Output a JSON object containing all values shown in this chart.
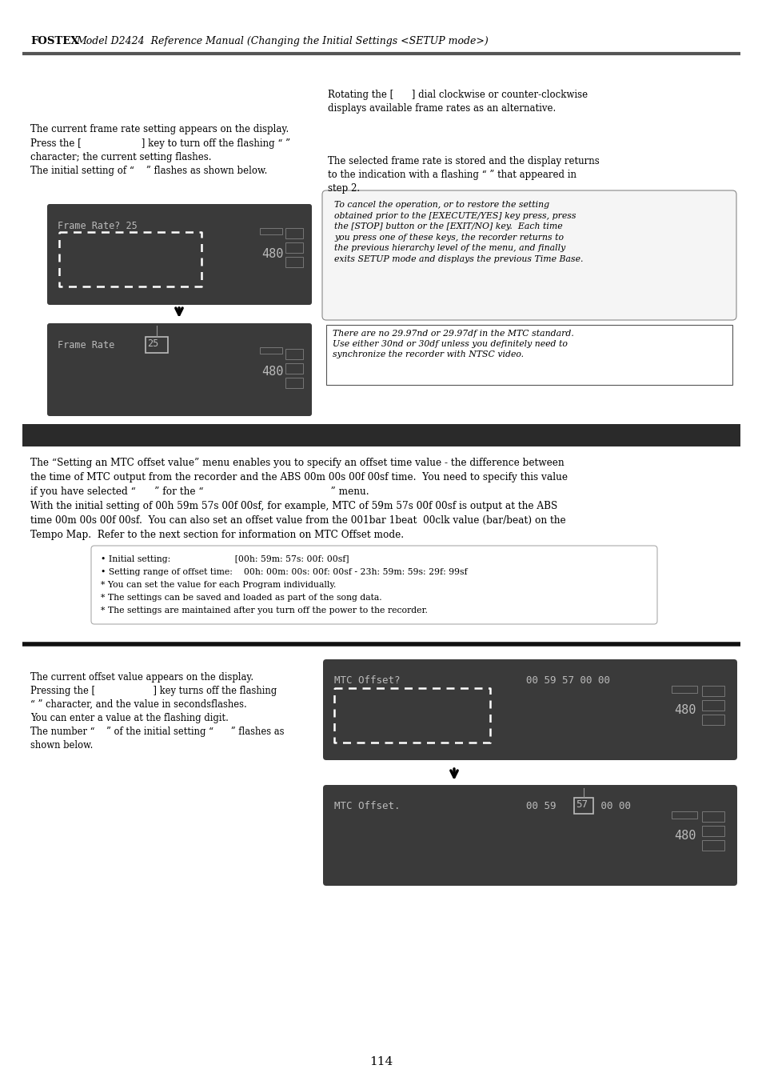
{
  "page_bg": "#ffffff",
  "header_text": "Model D2424  Reference Manual (Changing the Initial Settings <SETUP mode>)",
  "header_fostex": "FOSTEX",
  "page_number": "114",
  "top_rule_color": "#555555",
  "display_bg": "#3a3a3a",
  "display_text_color": "#cccccc",
  "section_bar_color": "#3a3a3a",
  "box_border_color": "#aaaaaa",
  "col1_right_text_1": "Rotating the [      ] dial clockwise or counter-clockwise\ndisplays available frame rates as an alternative.",
  "left_text_1": "The current frame rate setting appears on the display.\nPress the [                    ] key to turn off the flashing “ ”\ncharacter; the current setting flashes.\nThe initial setting of “    ” flashes as shown below.",
  "right_text_1": "The selected frame rate is stored and the display returns\nto the indication with a flashing “ ” that appeared in\nstep 2.",
  "cancel_box_text": "To cancel the operation, or to restore the setting\nobtained prior to the [EXECUTE/YES] key press, press\nthe [STOP] button or the [EXIT/NO] key.  Each time\nyou press one of these keys, the recorder returns to\nthe previous hierarchy level of the menu, and finally\nexits SETUP mode and displays the previous Time Base.",
  "ntsc_box_text": "There are no 29.97nd or 29.97df in the MTC standard.\nUse either 30nd or 30df unless you definitely need to\nsynchronize the recorder with NTSC video.",
  "section2_body_1": "The “Setting an MTC offset value” menu enables you to specify an offset time value - the difference between",
  "section2_body_2": "the time of MTC output from the recorder and the ABS 00m 00s 00f 00sf time.  You need to specify this value",
  "section2_body_3": "if you have selected “      ” for the “                                         ” menu.",
  "section2_body_4": "With the initial setting of 00h 59m 57s 00f 00sf, for example, MTC of 59m 57s 00f 00sf is output at the ABS",
  "section2_body_5": "time 00m 00s 00f 00sf.  You can also set an offset value from the 001bar 1beat  00clk value (bar/beat) on the",
  "section2_body_6": "Tempo Map.  Refer to the next section for information on MTC Offset mode.",
  "bullet_line1": "• Initial setting:                       [00h: 59m: 57s: 00f: 00sf]",
  "bullet_line2": "• Setting range of offset time:    00h: 00m: 00s: 00f: 00sf - 23h: 59m: 59s: 29f: 99sf",
  "bullet_line3": "* You can set the value for each Program individually.",
  "bullet_line4": "* The settings can be saved and loaded as part of the song data.",
  "bullet_line5": "* The settings are maintained after you turn off the power to the recorder.",
  "left_text_2_1": "The current offset value appears on the display.",
  "left_text_2_2": "Pressing the [                    ] key turns off the flashing",
  "left_text_2_3": "“ ” character, and the value in secondsflashes.",
  "left_text_2_4": "You can enter a value at the flashing digit.",
  "left_text_2_5": "The number “    ” of the initial setting “      ” flashes as",
  "left_text_2_6": "shown below."
}
